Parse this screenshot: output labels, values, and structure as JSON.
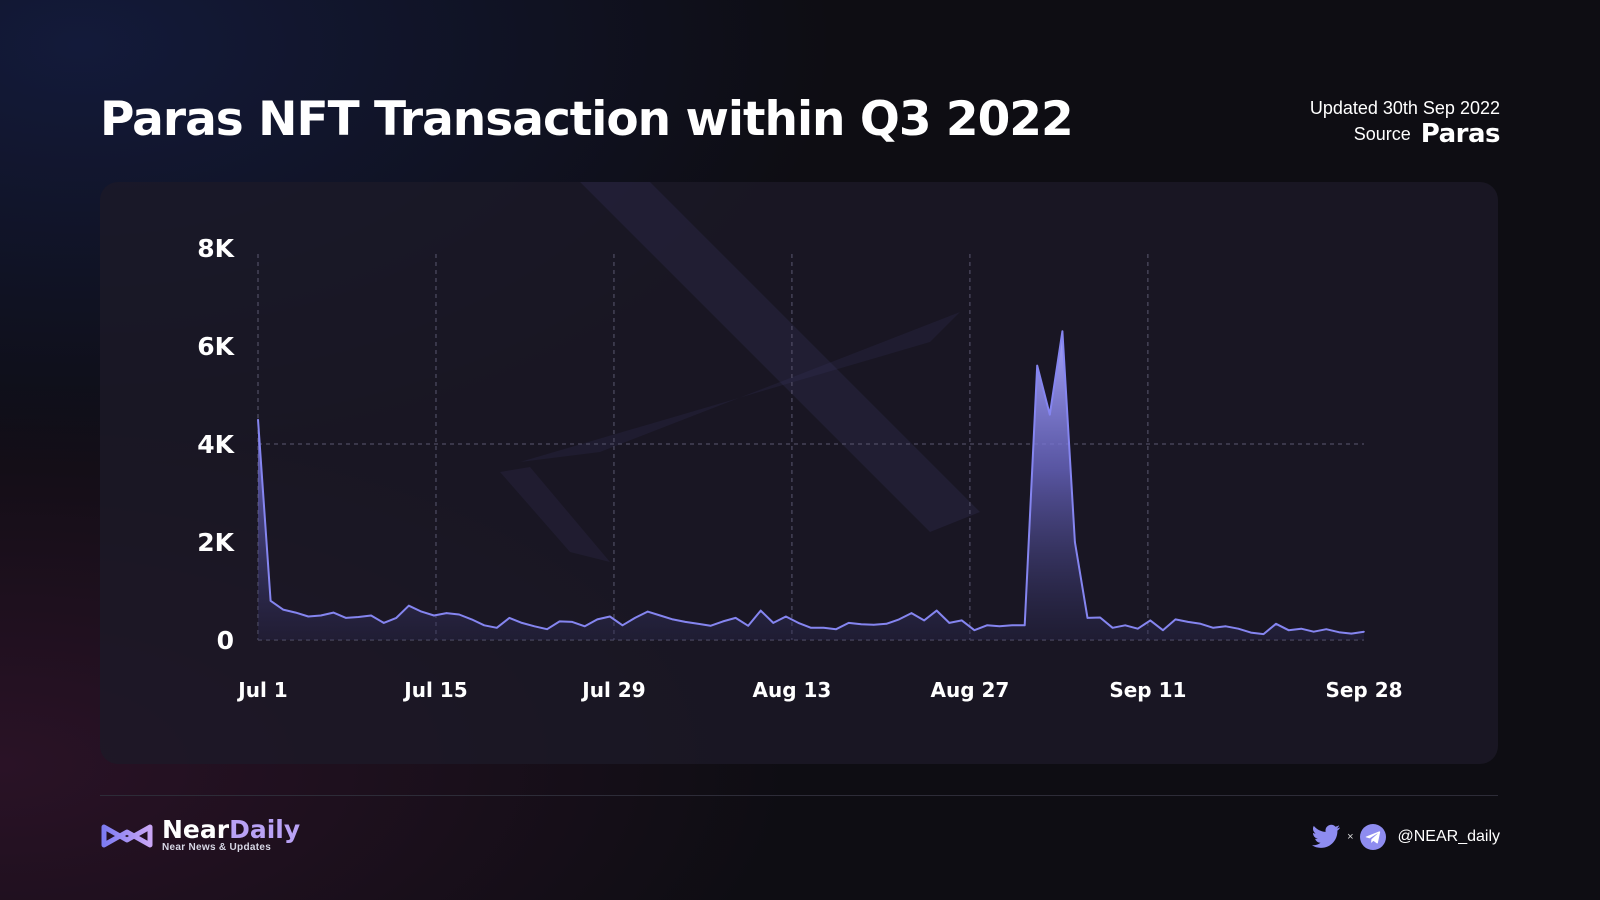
{
  "title": "Paras NFT Transaction within Q3 2022",
  "updated": "Updated 30th Sep 2022",
  "source_label": "Source",
  "source_brand": "Paras",
  "footer": {
    "logo_near": "Near",
    "logo_daily": "Daily",
    "logo_tagline": "Near News & Updates",
    "separator": "×",
    "handle": "@NEAR_daily",
    "icons": [
      "neardaily-logo-icon",
      "twitter-icon",
      "telegram-icon"
    ]
  },
  "colors": {
    "accent": "#8585f0",
    "fill_top": "#a7a6ff",
    "background": "#0e0d13"
  },
  "chart_data": {
    "type": "area",
    "title": "Paras NFT Transaction within Q3 2022",
    "xlabel": "",
    "ylabel": "",
    "x_ticks": [
      "Jul 1",
      "Jul 15",
      "Jul 29",
      "Aug 13",
      "Aug 27",
      "Sep 11",
      "Sep 28"
    ],
    "x_tick_day_index": [
      0,
      14,
      28,
      42,
      56,
      70,
      87
    ],
    "y_ticks": [
      "0",
      "2K",
      "4K",
      "6K",
      "8K"
    ],
    "ylim": [
      0,
      8000
    ],
    "grid": "dashed lines at x ticks and at 4K",
    "x_start": "Jul 1",
    "series": [
      {
        "values": [
          4500,
          800,
          620,
          560,
          480,
          500,
          560,
          450,
          470,
          500,
          350,
          450,
          700,
          580,
          500,
          550,
          520,
          420,
          300,
          250,
          450,
          350,
          280,
          220,
          380,
          370,
          280,
          420,
          480,
          300,
          450,
          580,
          500,
          420,
          370,
          330,
          290,
          380,
          450,
          290,
          600,
          350,
          480,
          350,
          250,
          250,
          220,
          350,
          320,
          310,
          330,
          420,
          550,
          400,
          600,
          350,
          400,
          200,
          300,
          280,
          300,
          300,
          5600,
          4600,
          6300,
          2000,
          450,
          460,
          250,
          300,
          230,
          400,
          200,
          420,
          370,
          330,
          250,
          280,
          230,
          150,
          120,
          330,
          200,
          230,
          170,
          220,
          160,
          130,
          170
        ]
      }
    ]
  }
}
